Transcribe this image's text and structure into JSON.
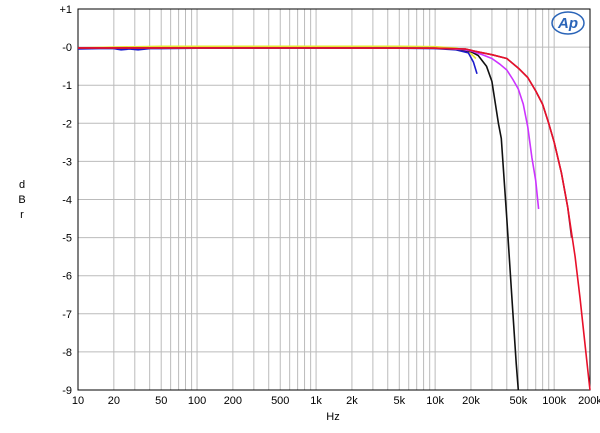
{
  "chart_data": {
    "type": "line",
    "title": "",
    "xlabel": "Hz",
    "ylabel_letters": [
      "d",
      "B",
      "r"
    ],
    "x_scale": "log",
    "xlim": [
      10,
      200000
    ],
    "ylim": [
      -9,
      1
    ],
    "grid": true,
    "legend": "none",
    "logo": "Ap",
    "x_ticks": [
      {
        "value": 10,
        "label": "10"
      },
      {
        "value": 20,
        "label": "20"
      },
      {
        "value": 50,
        "label": "50"
      },
      {
        "value": 100,
        "label": "100"
      },
      {
        "value": 200,
        "label": "200"
      },
      {
        "value": 500,
        "label": "500"
      },
      {
        "value": 1000,
        "label": "1k"
      },
      {
        "value": 2000,
        "label": "2k"
      },
      {
        "value": 5000,
        "label": "5k"
      },
      {
        "value": 10000,
        "label": "10k"
      },
      {
        "value": 20000,
        "label": "20k"
      },
      {
        "value": 50000,
        "label": "50k"
      },
      {
        "value": 100000,
        "label": "100k"
      },
      {
        "value": 200000,
        "label": "200k"
      }
    ],
    "y_ticks": [
      {
        "value": 1,
        "label": "+1"
      },
      {
        "value": 0,
        "label": "-0"
      },
      {
        "value": -1,
        "label": "-1"
      },
      {
        "value": -2,
        "label": "-2"
      },
      {
        "value": -3,
        "label": "-3"
      },
      {
        "value": -4,
        "label": "-4"
      },
      {
        "value": -5,
        "label": "-5"
      },
      {
        "value": -6,
        "label": "-6"
      },
      {
        "value": -7,
        "label": "-7"
      },
      {
        "value": -8,
        "label": "-8"
      },
      {
        "value": -9,
        "label": "-9"
      }
    ],
    "series": [
      {
        "color": "#e6e633",
        "points": [
          [
            10,
            -0.02
          ],
          [
            20,
            0.0
          ],
          [
            50,
            0.02
          ],
          [
            100,
            0.02
          ],
          [
            200,
            0.02
          ],
          [
            500,
            0.02
          ],
          [
            1000,
            0.02
          ],
          [
            2000,
            0.02
          ],
          [
            5000,
            0.02
          ],
          [
            10000,
            0.01
          ],
          [
            15000,
            -0.03
          ],
          [
            19000,
            -0.1
          ],
          [
            22000,
            -0.3
          ]
        ]
      },
      {
        "color": "#1a1acc",
        "points": [
          [
            10,
            -0.05
          ],
          [
            15,
            -0.04
          ],
          [
            20,
            -0.04
          ],
          [
            23,
            -0.07
          ],
          [
            27,
            -0.05
          ],
          [
            32,
            -0.07
          ],
          [
            40,
            -0.04
          ],
          [
            50,
            -0.04
          ],
          [
            100,
            -0.03
          ],
          [
            200,
            -0.03
          ],
          [
            500,
            -0.03
          ],
          [
            1000,
            -0.03
          ],
          [
            2000,
            -0.03
          ],
          [
            5000,
            -0.03
          ],
          [
            10000,
            -0.04
          ],
          [
            15000,
            -0.07
          ],
          [
            19000,
            -0.15
          ],
          [
            21000,
            -0.4
          ],
          [
            22500,
            -0.7
          ]
        ]
      },
      {
        "color": "#111111",
        "points": [
          [
            10,
            -0.03
          ],
          [
            100,
            -0.02
          ],
          [
            1000,
            -0.02
          ],
          [
            10000,
            -0.03
          ],
          [
            16000,
            -0.06
          ],
          [
            20000,
            -0.12
          ],
          [
            23000,
            -0.22
          ],
          [
            27000,
            -0.5
          ],
          [
            30000,
            -0.9
          ],
          [
            34000,
            -2.0
          ],
          [
            36000,
            -2.4
          ],
          [
            40000,
            -4.5
          ],
          [
            44000,
            -6.5
          ],
          [
            48000,
            -8.3
          ],
          [
            50000,
            -9.0
          ]
        ]
      },
      {
        "color": "#cc33ff",
        "points": [
          [
            10,
            -0.02
          ],
          [
            1000,
            -0.02
          ],
          [
            10000,
            -0.03
          ],
          [
            17000,
            -0.06
          ],
          [
            20000,
            -0.1
          ],
          [
            25000,
            -0.2
          ],
          [
            30000,
            -0.3
          ],
          [
            35000,
            -0.45
          ],
          [
            40000,
            -0.6
          ],
          [
            45000,
            -0.85
          ],
          [
            50000,
            -1.1
          ],
          [
            55000,
            -1.5
          ],
          [
            60000,
            -2.1
          ],
          [
            65000,
            -2.9
          ],
          [
            70000,
            -3.5
          ],
          [
            74000,
            -4.25
          ]
        ]
      },
      {
        "color": "#7a1e3c",
        "points": [
          [
            10,
            -0.02
          ],
          [
            1000,
            -0.02
          ],
          [
            10000,
            -0.03
          ],
          [
            18000,
            -0.05
          ],
          [
            21000,
            -0.1
          ],
          [
            25000,
            -0.15
          ],
          [
            30000,
            -0.2
          ],
          [
            40000,
            -0.3
          ],
          [
            50000,
            -0.55
          ],
          [
            60000,
            -0.8
          ],
          [
            70000,
            -1.15
          ],
          [
            80000,
            -1.5
          ],
          [
            90000,
            -2.0
          ],
          [
            100000,
            -2.5
          ],
          [
            115000,
            -3.3
          ],
          [
            130000,
            -4.2
          ],
          [
            140000,
            -5.0
          ]
        ]
      },
      {
        "color": "#e8102a",
        "points": [
          [
            10,
            -0.02
          ],
          [
            1000,
            -0.02
          ],
          [
            10000,
            -0.03
          ],
          [
            18000,
            -0.05
          ],
          [
            21000,
            -0.1
          ],
          [
            25000,
            -0.15
          ],
          [
            30000,
            -0.2
          ],
          [
            40000,
            -0.3
          ],
          [
            50000,
            -0.55
          ],
          [
            60000,
            -0.8
          ],
          [
            70000,
            -1.15
          ],
          [
            80000,
            -1.5
          ],
          [
            90000,
            -2.0
          ],
          [
            100000,
            -2.5
          ],
          [
            115000,
            -3.3
          ],
          [
            130000,
            -4.2
          ],
          [
            150000,
            -5.5
          ],
          [
            165000,
            -6.6
          ],
          [
            180000,
            -7.7
          ],
          [
            195000,
            -8.7
          ],
          [
            200000,
            -9.0
          ]
        ]
      }
    ]
  }
}
